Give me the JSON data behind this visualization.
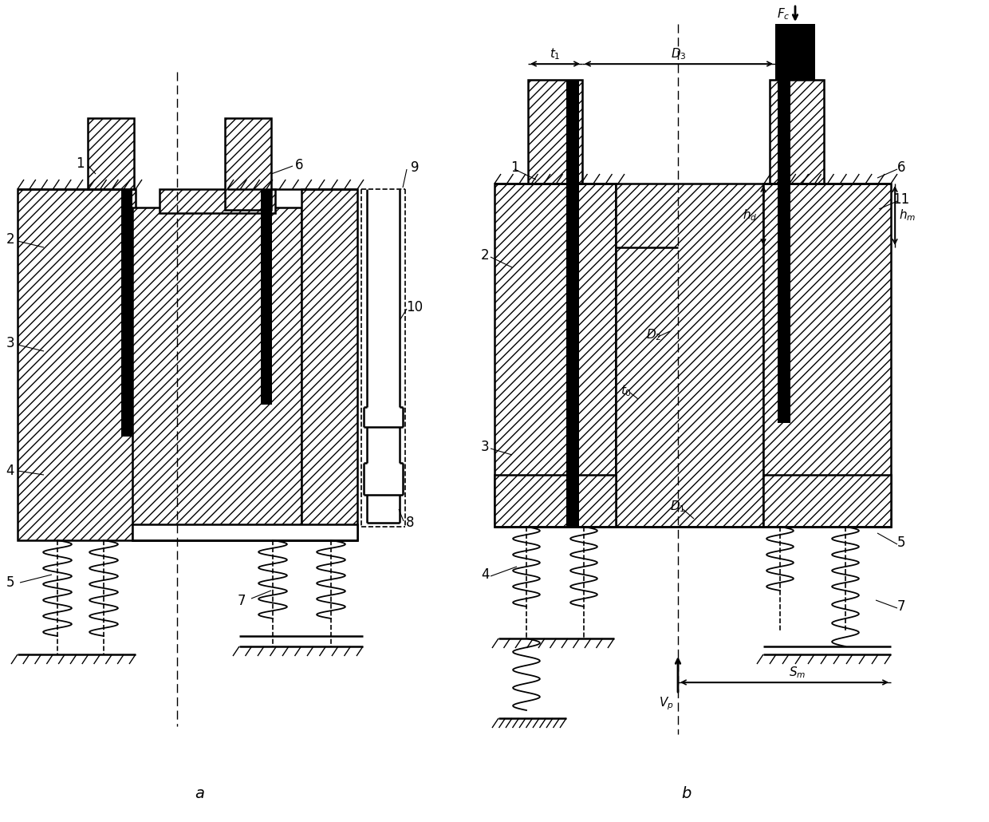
{
  "bg_color": "#ffffff",
  "fig_width": 12.4,
  "fig_height": 10.3,
  "dpi": 100
}
